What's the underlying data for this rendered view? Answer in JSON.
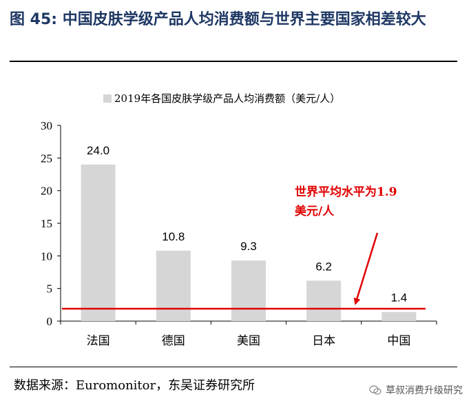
{
  "figure": {
    "title": "图 45: 中国皮肤学级产品人均消费额与世界主要国家相差较大",
    "source": "数据来源：Euromonitor，东吴证券研究所",
    "watermark": "草叔消费升级研究"
  },
  "chart_data": {
    "type": "bar",
    "legend": "2019年各国皮肤学级产品人均消费额（美元/人）",
    "legend_position": "top-center",
    "categories": [
      "法国",
      "德国",
      "美国",
      "日本",
      "中国"
    ],
    "values": [
      24.0,
      10.8,
      9.3,
      6.2,
      1.4
    ],
    "value_labels": [
      "24.0",
      "10.8",
      "9.3",
      "6.2",
      "1.4"
    ],
    "ylim": [
      0,
      30
    ],
    "yticks": [
      0,
      5,
      10,
      15,
      20,
      25,
      30
    ],
    "grid": false,
    "reference_line": {
      "value": 1.9,
      "color": "#e00000"
    },
    "annotation": {
      "lines": [
        "世界平均水平为1.9",
        "美元/人"
      ],
      "color": "#e00000"
    },
    "bar_color": "#d6d6d6"
  }
}
